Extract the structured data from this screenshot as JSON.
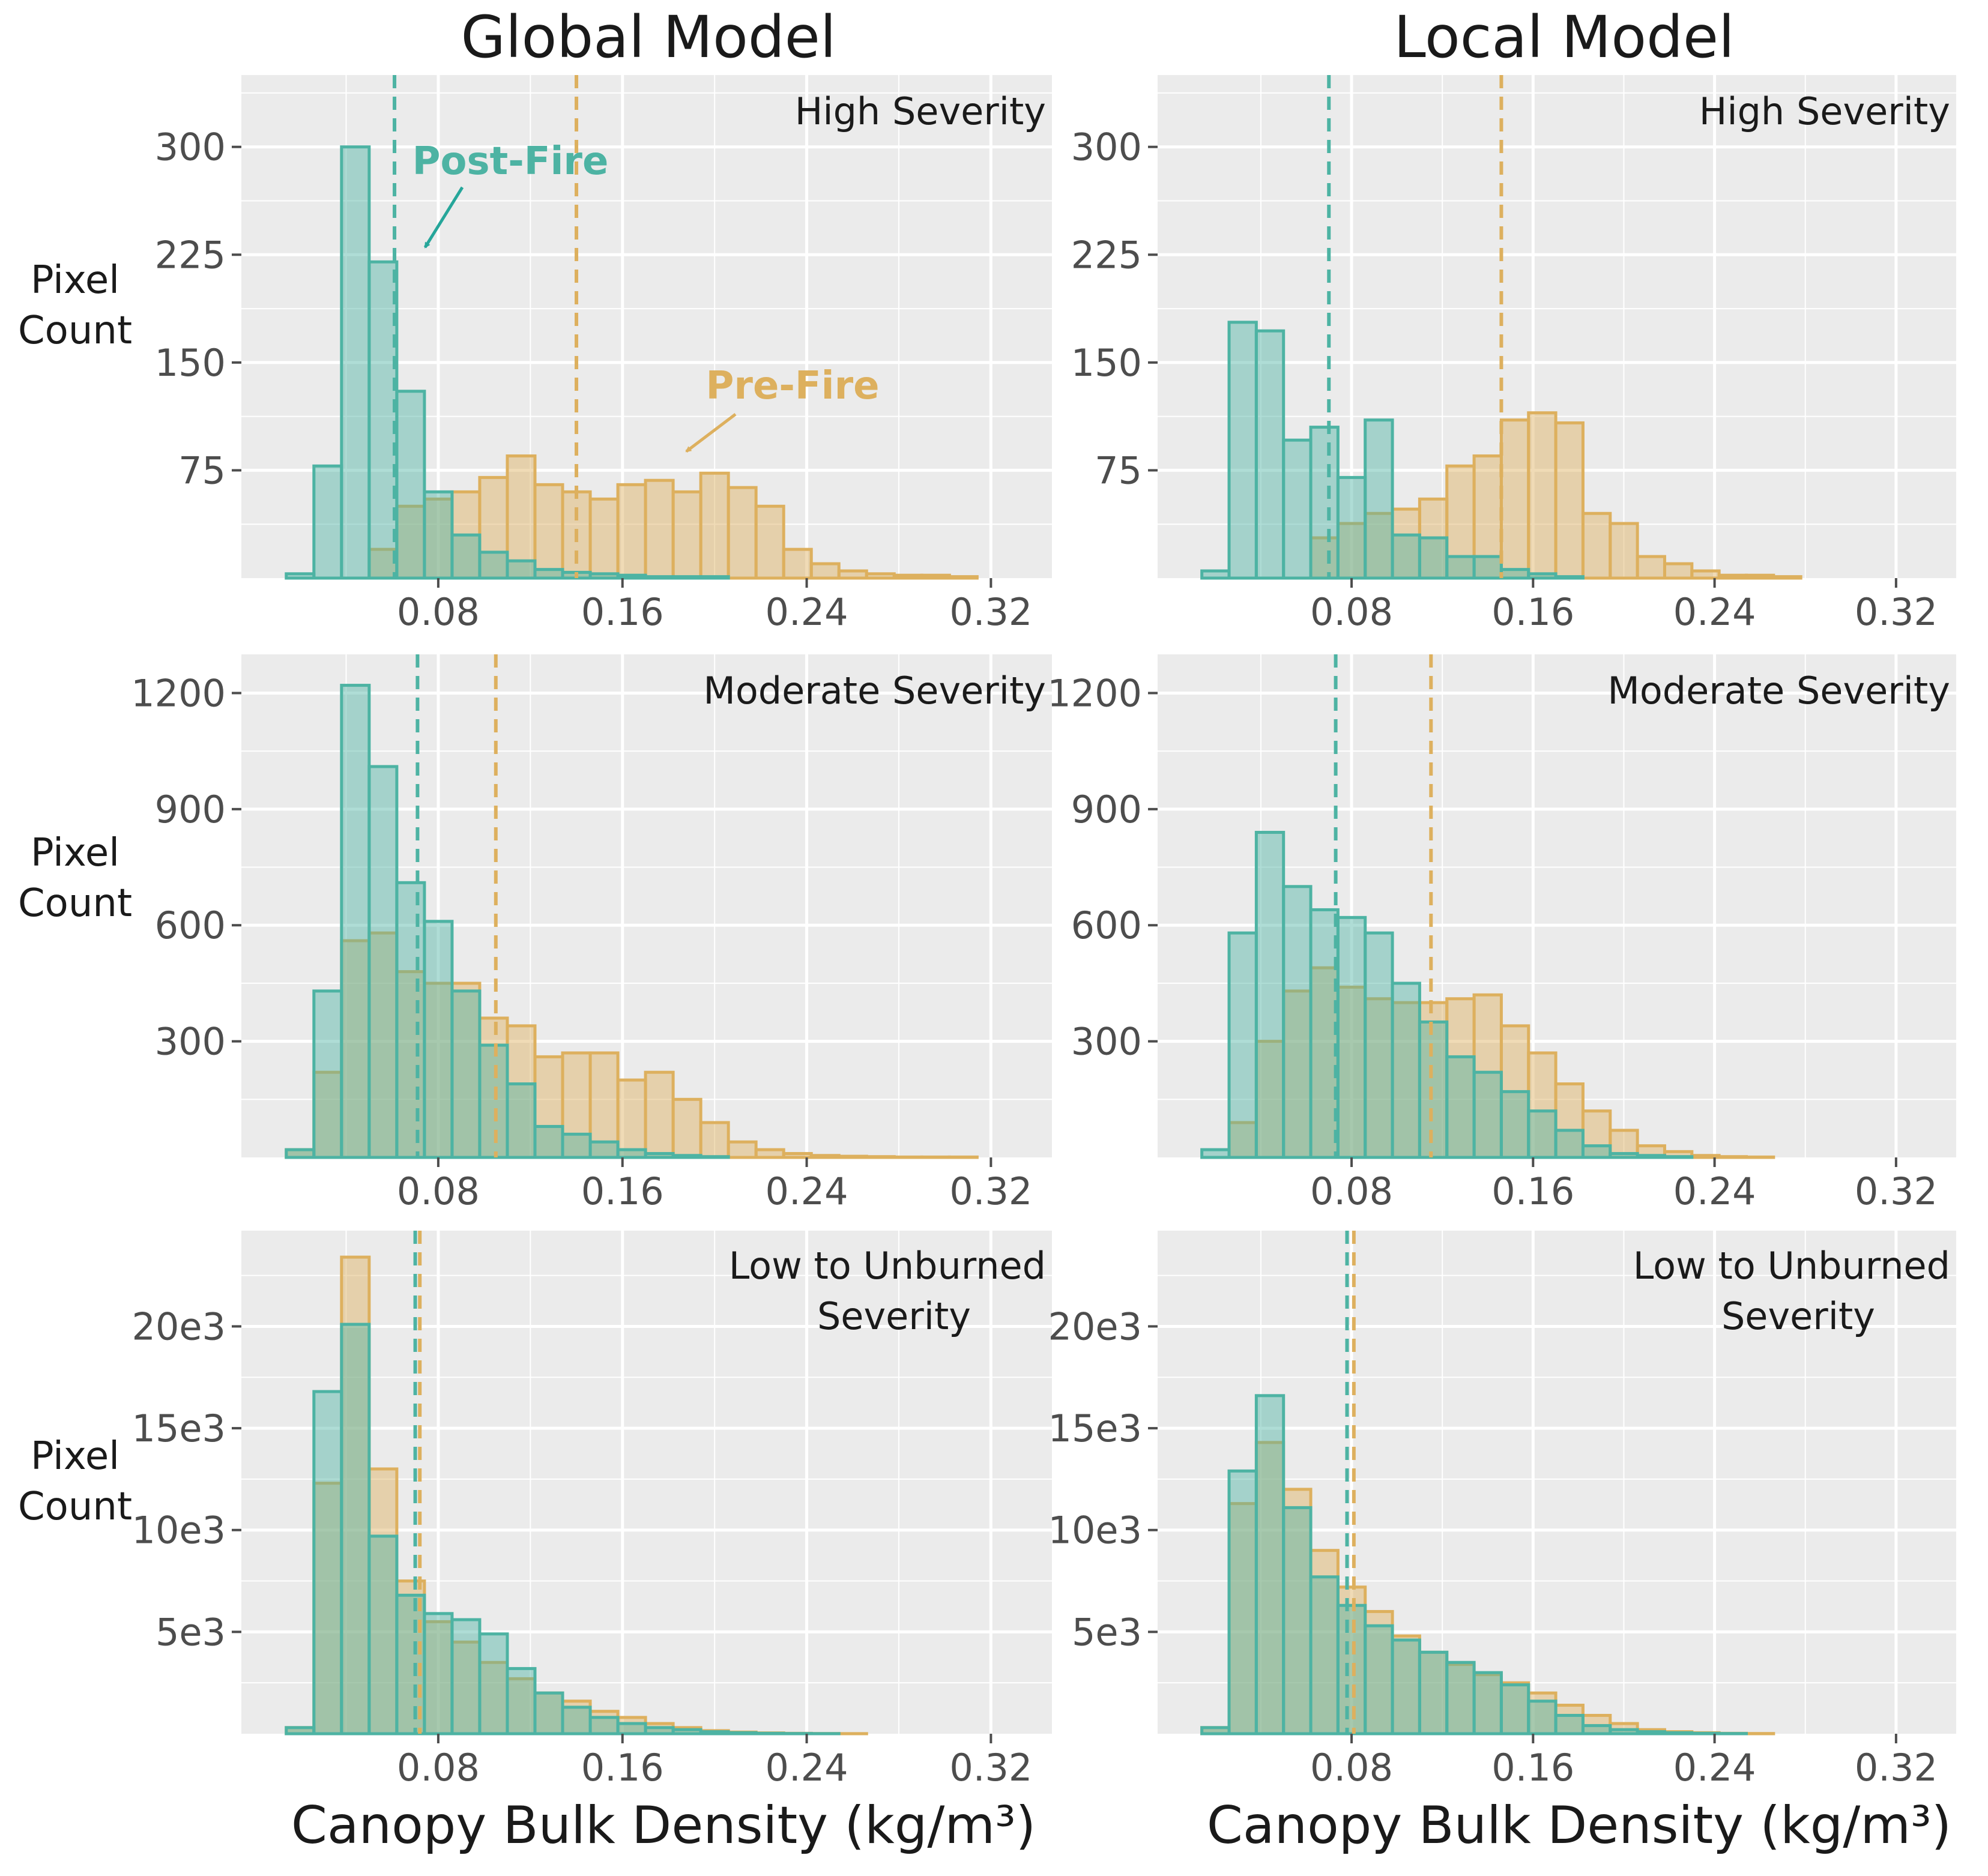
{
  "figure": {
    "column_titles": [
      "Global Model",
      "Local Model"
    ],
    "x_axis_label": "Canopy Bulk Density (kg/m³)",
    "y_axis_label_line1": "Pixel",
    "y_axis_label_line2": "Count",
    "colors": {
      "panel_bg": "#EBEBEB",
      "grid": "#FFFFFF",
      "pre_fire": "#DDB05E",
      "post_fire": "#4DB3A3",
      "text": "#1A1A1A",
      "tick": "#4D4D4D"
    },
    "annotations": {
      "post_fire_label": "Post-Fire",
      "pre_fire_label": "Pre-Fire"
    }
  },
  "chart_data": [
    {
      "type": "histogram",
      "model": "Global Model",
      "title": "High Severity",
      "xlabel": "Canopy Bulk Density (kg/m³)",
      "ylabel": "Pixel Count",
      "xlim": [
        -0.0055,
        0.3465
      ],
      "ylim": [
        0,
        350
      ],
      "x_ticks": [
        0.08,
        0.16,
        0.24,
        0.32
      ],
      "x_tick_labels": [
        "0.08",
        "0.16",
        "0.24",
        "0.32"
      ],
      "y_ticks": [
        75,
        150,
        225,
        300
      ],
      "y_tick_labels": [
        "75",
        "150",
        "225",
        "300"
      ],
      "bin_width": 0.012,
      "bin_starts": [
        0.014,
        0.026,
        0.038,
        0.05,
        0.062,
        0.074,
        0.086,
        0.098,
        0.11,
        0.122,
        0.134,
        0.146,
        0.158,
        0.17,
        0.182,
        0.194,
        0.206,
        0.218,
        0.23,
        0.242,
        0.254,
        0.266,
        0.278,
        0.29,
        0.302,
        0.314,
        0.326
      ],
      "series": [
        {
          "name": "Pre-Fire",
          "values": [
            0,
            0,
            0,
            20,
            50,
            55,
            60,
            70,
            85,
            65,
            60,
            55,
            65,
            68,
            60,
            73,
            63,
            50,
            20,
            10,
            5,
            3,
            2,
            2,
            1,
            0,
            0
          ]
        },
        {
          "name": "Post-Fire",
          "values": [
            3,
            78,
            300,
            220,
            130,
            60,
            30,
            18,
            12,
            6,
            4,
            3,
            2,
            1,
            1,
            1,
            0,
            0,
            0,
            0,
            0,
            0,
            0,
            0,
            0,
            0,
            0
          ]
        }
      ],
      "mean_lines": {
        "Pre-Fire": 0.14,
        "Post-Fire": 0.061
      }
    },
    {
      "type": "histogram",
      "model": "Local Model",
      "title": "High Severity",
      "xlabel": "Canopy Bulk Density (kg/m³)",
      "ylabel": "",
      "xlim": [
        -0.0055,
        0.3465
      ],
      "ylim": [
        0,
        350
      ],
      "x_ticks": [
        0.08,
        0.16,
        0.24,
        0.32
      ],
      "x_tick_labels": [
        "0.08",
        "0.16",
        "0.24",
        "0.32"
      ],
      "y_ticks": [
        75,
        150,
        225,
        300
      ],
      "y_tick_labels": [
        "75",
        "150",
        "225",
        "300"
      ],
      "bin_width": 0.012,
      "bin_starts": [
        0.014,
        0.026,
        0.038,
        0.05,
        0.062,
        0.074,
        0.086,
        0.098,
        0.11,
        0.122,
        0.134,
        0.146,
        0.158,
        0.17,
        0.182,
        0.194,
        0.206,
        0.218,
        0.23,
        0.242,
        0.254,
        0.266,
        0.278,
        0.29,
        0.302,
        0.314,
        0.326
      ],
      "series": [
        {
          "name": "Pre-Fire",
          "values": [
            0,
            0,
            0,
            0,
            28,
            38,
            45,
            48,
            55,
            78,
            85,
            110,
            115,
            108,
            45,
            38,
            15,
            10,
            5,
            2,
            2,
            1,
            0,
            0,
            0,
            0,
            0
          ]
        },
        {
          "name": "Post-Fire",
          "values": [
            5,
            178,
            172,
            96,
            105,
            70,
            110,
            30,
            28,
            15,
            15,
            6,
            3,
            1,
            0,
            0,
            0,
            0,
            0,
            0,
            0,
            0,
            0,
            0,
            0,
            0,
            0
          ]
        }
      ],
      "mean_lines": {
        "Pre-Fire": 0.146,
        "Post-Fire": 0.07
      }
    },
    {
      "type": "histogram",
      "model": "Global Model",
      "title": "Moderate Severity",
      "xlabel": "Canopy Bulk Density (kg/m³)",
      "ylabel": "Pixel Count",
      "xlim": [
        -0.0055,
        0.3465
      ],
      "ylim": [
        0,
        1300
      ],
      "x_ticks": [
        0.08,
        0.16,
        0.24,
        0.32
      ],
      "x_tick_labels": [
        "0.08",
        "0.16",
        "0.24",
        "0.32"
      ],
      "y_ticks": [
        300,
        600,
        900,
        1200
      ],
      "y_tick_labels": [
        "300",
        "600",
        "900",
        "1200"
      ],
      "bin_width": 0.012,
      "bin_starts": [
        0.014,
        0.026,
        0.038,
        0.05,
        0.062,
        0.074,
        0.086,
        0.098,
        0.11,
        0.122,
        0.134,
        0.146,
        0.158,
        0.17,
        0.182,
        0.194,
        0.206,
        0.218,
        0.23,
        0.242,
        0.254,
        0.266,
        0.278,
        0.29,
        0.302,
        0.314,
        0.326
      ],
      "series": [
        {
          "name": "Pre-Fire",
          "values": [
            20,
            220,
            560,
            580,
            480,
            450,
            450,
            360,
            340,
            260,
            270,
            270,
            200,
            220,
            150,
            90,
            40,
            20,
            10,
            5,
            3,
            2,
            1,
            1,
            1,
            0,
            0
          ]
        },
        {
          "name": "Post-Fire",
          "values": [
            20,
            430,
            1220,
            1010,
            710,
            610,
            430,
            290,
            190,
            80,
            60,
            40,
            20,
            10,
            5,
            2,
            0,
            0,
            0,
            0,
            0,
            0,
            0,
            0,
            0,
            0,
            0
          ]
        }
      ],
      "mean_lines": {
        "Pre-Fire": 0.105,
        "Post-Fire": 0.071
      }
    },
    {
      "type": "histogram",
      "model": "Local Model",
      "title": "Moderate Severity",
      "xlabel": "Canopy Bulk Density (kg/m³)",
      "ylabel": "",
      "xlim": [
        -0.0055,
        0.3465
      ],
      "ylim": [
        0,
        1300
      ],
      "x_ticks": [
        0.08,
        0.16,
        0.24,
        0.32
      ],
      "x_tick_labels": [
        "0.08",
        "0.16",
        "0.24",
        "0.32"
      ],
      "y_ticks": [
        300,
        600,
        900,
        1200
      ],
      "y_tick_labels": [
        "300",
        "600",
        "900",
        "1200"
      ],
      "bin_width": 0.012,
      "bin_starts": [
        0.014,
        0.026,
        0.038,
        0.05,
        0.062,
        0.074,
        0.086,
        0.098,
        0.11,
        0.122,
        0.134,
        0.146,
        0.158,
        0.17,
        0.182,
        0.194,
        0.206,
        0.218,
        0.23,
        0.242,
        0.254,
        0.266,
        0.278,
        0.29,
        0.302,
        0.314,
        0.326
      ],
      "series": [
        {
          "name": "Pre-Fire",
          "values": [
            0,
            90,
            300,
            430,
            490,
            440,
            410,
            400,
            400,
            410,
            420,
            340,
            270,
            190,
            120,
            70,
            30,
            15,
            5,
            2,
            1,
            0,
            0,
            0,
            0,
            0,
            0
          ]
        },
        {
          "name": "Post-Fire",
          "values": [
            20,
            580,
            840,
            700,
            640,
            620,
            580,
            450,
            350,
            260,
            220,
            170,
            120,
            70,
            30,
            10,
            5,
            2,
            0,
            0,
            0,
            0,
            0,
            0,
            0,
            0,
            0
          ]
        }
      ],
      "mean_lines": {
        "Pre-Fire": 0.115,
        "Post-Fire": 0.073
      }
    },
    {
      "type": "histogram",
      "model": "Global Model",
      "title": "Low to Unburned Severity",
      "xlabel": "Canopy Bulk Density (kg/m³)",
      "ylabel": "Pixel Count",
      "xlim": [
        -0.0055,
        0.3465
      ],
      "ylim": [
        0,
        24700
      ],
      "x_ticks": [
        0.08,
        0.16,
        0.24,
        0.32
      ],
      "x_tick_labels": [
        "0.08",
        "0.16",
        "0.24",
        "0.32"
      ],
      "y_ticks": [
        5000,
        10000,
        15000,
        20000
      ],
      "y_tick_labels": [
        "5e3",
        "10e3",
        "15e3",
        "20e3"
      ],
      "bin_width": 0.012,
      "bin_starts": [
        0.014,
        0.026,
        0.038,
        0.05,
        0.062,
        0.074,
        0.086,
        0.098,
        0.11,
        0.122,
        0.134,
        0.146,
        0.158,
        0.17,
        0.182,
        0.194,
        0.206,
        0.218,
        0.23,
        0.242,
        0.254,
        0.266,
        0.278,
        0.29,
        0.302,
        0.314,
        0.326
      ],
      "series": [
        {
          "name": "Pre-Fire",
          "values": [
            300,
            12300,
            23400,
            13000,
            7500,
            5500,
            4500,
            3500,
            2700,
            2000,
            1600,
            1100,
            800,
            500,
            300,
            150,
            80,
            40,
            20,
            10,
            5,
            0,
            0,
            0,
            0,
            0,
            0
          ]
        },
        {
          "name": "Post-Fire",
          "values": [
            300,
            16800,
            20100,
            9700,
            6800,
            5900,
            5600,
            4900,
            3200,
            2000,
            1300,
            800,
            500,
            300,
            200,
            100,
            50,
            20,
            10,
            5,
            0,
            0,
            0,
            0,
            0,
            0,
            0
          ]
        }
      ],
      "mean_lines": {
        "Pre-Fire": 0.072,
        "Post-Fire": 0.07
      }
    },
    {
      "type": "histogram",
      "model": "Local Model",
      "title": "Low to Unburned Severity",
      "xlabel": "Canopy Bulk Density (kg/m³)",
      "ylabel": "",
      "xlim": [
        -0.0055,
        0.3465
      ],
      "ylim": [
        0,
        24700
      ],
      "x_ticks": [
        0.08,
        0.16,
        0.24,
        0.32
      ],
      "x_tick_labels": [
        "0.08",
        "0.16",
        "0.24",
        "0.32"
      ],
      "y_ticks": [
        5000,
        10000,
        15000,
        20000
      ],
      "y_tick_labels": [
        "5e3",
        "10e3",
        "15e3",
        "20e3"
      ],
      "bin_width": 0.012,
      "bin_starts": [
        0.014,
        0.026,
        0.038,
        0.05,
        0.062,
        0.074,
        0.086,
        0.098,
        0.11,
        0.122,
        0.134,
        0.146,
        0.158,
        0.17,
        0.182,
        0.194,
        0.206,
        0.218,
        0.23,
        0.242,
        0.254,
        0.266,
        0.278,
        0.29,
        0.302,
        0.314,
        0.326
      ],
      "series": [
        {
          "name": "Pre-Fire",
          "values": [
            300,
            11300,
            14300,
            12000,
            9000,
            7200,
            6000,
            4800,
            4000,
            3400,
            2900,
            2500,
            2000,
            1400,
            900,
            500,
            200,
            100,
            50,
            20,
            10,
            0,
            0,
            0,
            0,
            0,
            0
          ]
        },
        {
          "name": "Post-Fire",
          "values": [
            300,
            12900,
            16600,
            11100,
            7700,
            6300,
            5300,
            4600,
            4000,
            3500,
            3000,
            2400,
            1600,
            900,
            400,
            200,
            100,
            50,
            20,
            10,
            0,
            0,
            0,
            0,
            0,
            0,
            0
          ]
        }
      ],
      "mean_lines": {
        "Pre-Fire": 0.081,
        "Post-Fire": 0.078
      }
    }
  ]
}
